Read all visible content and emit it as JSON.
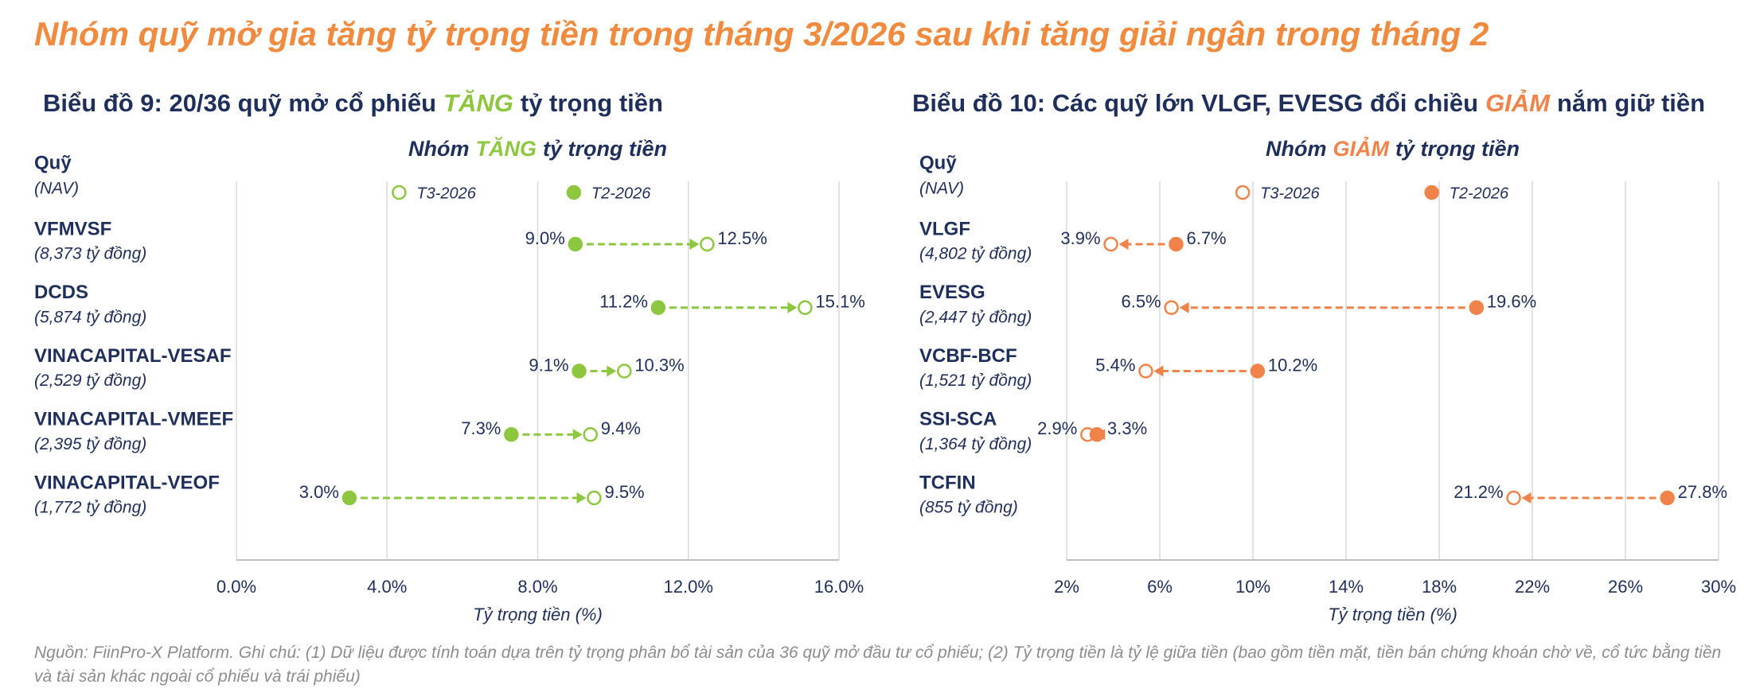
{
  "title": "Nhóm quỹ mở gia tăng tỷ trọng tiền trong tháng 3/2026 sau khi tăng giải ngân trong tháng 2",
  "note": "Nguồn: FiinPro-X Platform. Ghi chú: (1) Dữ liệu được tính toán dựa trên tỷ trọng phân bổ tài sản của 36 quỹ mở đầu tư cổ phiếu; (2) Tỷ trọng tiền là tỷ lệ giữa tiền (bao gồm tiền mặt, tiền bán chứng khoán chờ về, cổ tức bằng tiền và tài sản khác ngoài cổ phiếu và trái phiếu)",
  "chart_data": [
    {
      "type": "dumbbell",
      "title_parts": [
        "Biểu đồ 9: 20/36 quỹ mở cổ phiếu",
        "TĂNG",
        "tỷ trọng tiền"
      ],
      "subtitle_parts": [
        "Nhóm",
        "TĂNG",
        "tỷ trọng tiền"
      ],
      "highlight_color": "#8dc63f",
      "header": [
        "Quỹ",
        "(NAV)"
      ],
      "categories": [
        "VFMVSF",
        "DCDS",
        "VINACAPITAL-VESAF",
        "VINACAPITAL-VMEEF",
        "VINACAPITAL-VEOF"
      ],
      "category_notes": [
        "(8,373 tỷ đồng)",
        "(5,874 tỷ đồng)",
        "(2,529 tỷ đồng)",
        "(2,395 tỷ đồng)",
        "(1,772 tỷ đồng)"
      ],
      "series": [
        {
          "name": "T3-2026",
          "color": "#8dc63f",
          "marker": "open",
          "values": [
            12.5,
            15.1,
            10.3,
            9.4,
            9.5
          ],
          "value_labels": [
            "12.5%",
            "15.1%",
            "10.3%",
            "9.4%",
            "9.5%"
          ]
        },
        {
          "name": "T2-2026",
          "color": "#8dc63f",
          "marker": "filled",
          "values": [
            9.0,
            11.2,
            9.1,
            7.3,
            3.0
          ],
          "value_labels": [
            "9.0%",
            "11.2%",
            "9.1%",
            "7.3%",
            "3.0%"
          ]
        }
      ],
      "xlim": [
        0,
        16
      ],
      "xticks": [
        {
          "value": 0,
          "label": "0.0%"
        },
        {
          "value": 4,
          "label": "4.0%"
        },
        {
          "value": 8,
          "label": "8.0%"
        },
        {
          "value": 12,
          "label": "12.0%"
        },
        {
          "value": 16,
          "label": "16.0%"
        }
      ],
      "xlabel": "Tỷ trọng tiền (%)",
      "grid": true
    },
    {
      "type": "dumbbell",
      "title_parts": [
        "Biểu đồ 10: Các quỹ lớn VLGF, EVESG đổi chiều",
        "GIẢM",
        "nắm giữ tiền"
      ],
      "subtitle_parts": [
        "Nhóm",
        "GIẢM",
        "tỷ trọng tiền"
      ],
      "highlight_color": "#f0834a",
      "header": [
        "Quỹ",
        "(NAV)"
      ],
      "categories": [
        "VLGF",
        "EVESG",
        "VCBF-BCF",
        "SSI-SCA",
        "TCFIN"
      ],
      "category_notes": [
        "(4,802 tỷ đồng)",
        "(2,447 tỷ đồng)",
        "(1,521 tỷ đồng)",
        "(1,364 tỷ đồng)",
        "(855 tỷ đồng)"
      ],
      "series": [
        {
          "name": "T3-2026",
          "color": "#f0834a",
          "marker": "open",
          "values": [
            3.9,
            6.5,
            5.4,
            2.9,
            21.2
          ],
          "value_labels": [
            "3.9%",
            "6.5%",
            "5.4%",
            "2.9%",
            "21.2%"
          ]
        },
        {
          "name": "T2-2026",
          "color": "#f0834a",
          "marker": "filled",
          "values": [
            6.7,
            19.6,
            10.2,
            3.3,
            27.8
          ],
          "value_labels": [
            "6.7%",
            "19.6%",
            "10.2%",
            "3.3%",
            "27.8%"
          ]
        }
      ],
      "xlim": [
        2,
        30
      ],
      "xticks": [
        {
          "value": 2,
          "label": "2%"
        },
        {
          "value": 6,
          "label": "6%"
        },
        {
          "value": 10,
          "label": "10%"
        },
        {
          "value": 14,
          "label": "14%"
        },
        {
          "value": 18,
          "label": "18%"
        },
        {
          "value": 22,
          "label": "22%"
        },
        {
          "value": 26,
          "label": "26%"
        },
        {
          "value": 30,
          "label": "30%"
        }
      ],
      "xlabel": "Tỷ trọng tiền (%)",
      "grid": true
    }
  ]
}
